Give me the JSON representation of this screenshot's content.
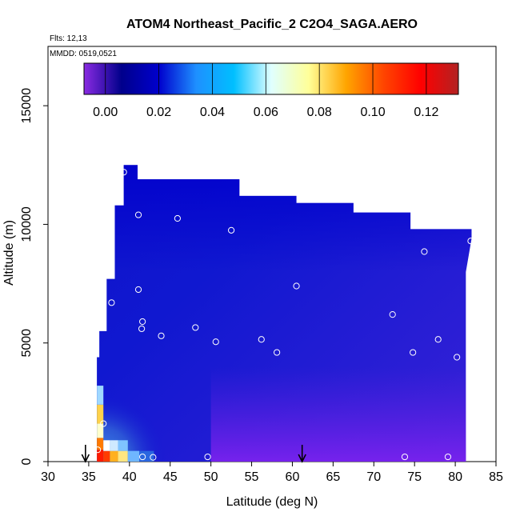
{
  "chart_data": {
    "type": "heatmap",
    "title": "ATOM4 Northeast_Pacific_2 C2O4_SAGA.AERO",
    "flights_text": "Flts: 12,13",
    "mmdd_text": "MMDD: 0519,0521",
    "xlabel": "Latitude (deg N)",
    "ylabel": "Altitude (m)",
    "xlim": [
      30,
      85
    ],
    "ylim": [
      0,
      17500
    ],
    "x_ticks": [
      30,
      35,
      40,
      45,
      50,
      55,
      60,
      65,
      70,
      75,
      80,
      85
    ],
    "x_tick_labels": [
      "30",
      "35",
      "40",
      "45",
      "50",
      "55",
      "60",
      "65",
      "70",
      "75",
      "80",
      "85"
    ],
    "y_ticks": [
      0,
      5000,
      10000,
      15000
    ],
    "y_tick_labels": [
      "0",
      "5000",
      "10000",
      "15000"
    ],
    "colorbar": {
      "range": [
        -0.008,
        0.132
      ],
      "ticks": [
        0.0,
        0.02,
        0.04,
        0.06,
        0.08,
        0.1,
        0.12
      ],
      "tick_labels": [
        "0.00",
        "0.02",
        "0.04",
        "0.06",
        "0.08",
        "0.10",
        "0.12"
      ],
      "colors": [
        "#8a2be2",
        "#00008b",
        "#0000cd",
        "#1e90ff",
        "#00bfff",
        "#e0ffff",
        "#ffff99",
        "#ffa500",
        "#ff4500",
        "#ff0000",
        "#b22222"
      ]
    },
    "arrow_markers_lat": [
      34.6,
      61.2
    ],
    "sample_points": [
      {
        "lat": 39.3,
        "alt": 12200
      },
      {
        "lat": 41.1,
        "alt": 10400
      },
      {
        "lat": 45.9,
        "alt": 10250
      },
      {
        "lat": 52.5,
        "alt": 9750
      },
      {
        "lat": 76.2,
        "alt": 8850
      },
      {
        "lat": 81.9,
        "alt": 9300
      },
      {
        "lat": 60.5,
        "alt": 7400
      },
      {
        "lat": 41.1,
        "alt": 7250
      },
      {
        "lat": 37.8,
        "alt": 6700
      },
      {
        "lat": 72.3,
        "alt": 6200
      },
      {
        "lat": 41.6,
        "alt": 5900
      },
      {
        "lat": 48.1,
        "alt": 5650
      },
      {
        "lat": 41.5,
        "alt": 5600
      },
      {
        "lat": 43.9,
        "alt": 5300
      },
      {
        "lat": 56.2,
        "alt": 5150
      },
      {
        "lat": 77.9,
        "alt": 5150
      },
      {
        "lat": 50.6,
        "alt": 5050
      },
      {
        "lat": 58.1,
        "alt": 4600
      },
      {
        "lat": 74.8,
        "alt": 4600
      },
      {
        "lat": 80.2,
        "alt": 4400
      },
      {
        "lat": 35.3,
        "alt": 4100
      },
      {
        "lat": 36.8,
        "alt": 1600
      },
      {
        "lat": 36.1,
        "alt": 500
      },
      {
        "lat": 41.6,
        "alt": 200
      },
      {
        "lat": 42.9,
        "alt": 180
      },
      {
        "lat": 49.6,
        "alt": 200
      },
      {
        "lat": 73.8,
        "alt": 200
      },
      {
        "lat": 79.1,
        "alt": 200
      }
    ],
    "data_envelope_top": [
      {
        "lat": 36.0,
        "alt": 4400
      },
      {
        "lat": 36.3,
        "alt": 5500
      },
      {
        "lat": 37.2,
        "alt": 7700
      },
      {
        "lat": 38.2,
        "alt": 10800
      },
      {
        "lat": 39.3,
        "alt": 12500
      },
      {
        "lat": 41.0,
        "alt": 11900
      },
      {
        "lat": 46.5,
        "alt": 11900
      },
      {
        "lat": 53.5,
        "alt": 11200
      },
      {
        "lat": 60.5,
        "alt": 10900
      },
      {
        "lat": 67.5,
        "alt": 10500
      },
      {
        "lat": 74.5,
        "alt": 9800
      },
      {
        "lat": 82.0,
        "alt": 9400
      }
    ],
    "data_envelope_bottom_lat": [
      36.0,
      81.3
    ],
    "field_value_summary": {
      "low_altitude_coastal_south": 0.12,
      "mid_troposphere": 0.015,
      "upper_troposphere_mid_lat": 0.02,
      "boundary_layer_high_lat": -0.005
    }
  }
}
